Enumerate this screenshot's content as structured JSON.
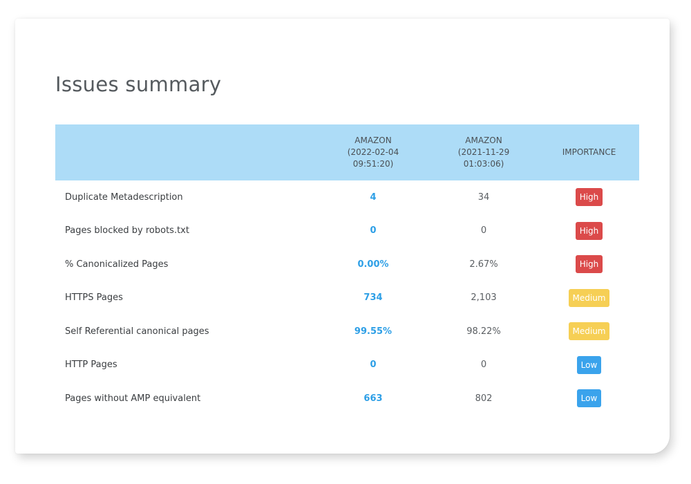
{
  "title": "Issues summary",
  "columns": {
    "metric": "",
    "current": {
      "name": "AMAZON",
      "date": "(2022-02-04",
      "time": "09:51:20)"
    },
    "previous": {
      "name": "AMAZON",
      "date": "(2021-11-29",
      "time": "01:03:06)"
    },
    "importance": "IMPORTANCE"
  },
  "rows": [
    {
      "metric": "Duplicate Metadescription",
      "current": "4",
      "previous": "34",
      "importance": "High",
      "level": "high"
    },
    {
      "metric": "Pages blocked by robots.txt",
      "current": "0",
      "previous": "0",
      "importance": "High",
      "level": "high"
    },
    {
      "metric": "% Canonicalized Pages",
      "current": "0.00%",
      "previous": "2.67%",
      "importance": "High",
      "level": "high"
    },
    {
      "metric": "HTTPS Pages",
      "current": "734",
      "previous": "2,103",
      "importance": "Medium",
      "level": "medium"
    },
    {
      "metric": "Self Referential canonical pages",
      "current": "99.55%",
      "previous": "98.22%",
      "importance": "Medium",
      "level": "medium"
    },
    {
      "metric": "HTTP Pages",
      "current": "0",
      "previous": "0",
      "importance": "Low",
      "level": "low"
    },
    {
      "metric": "Pages without AMP equivalent",
      "current": "663",
      "previous": "802",
      "importance": "Low",
      "level": "low"
    }
  ],
  "colors": {
    "header_bg": "#addcf7",
    "current_value": "#2e9fe6",
    "high": "#db4a4a",
    "medium": "#f6cf55",
    "low": "#3aa3ec"
  }
}
